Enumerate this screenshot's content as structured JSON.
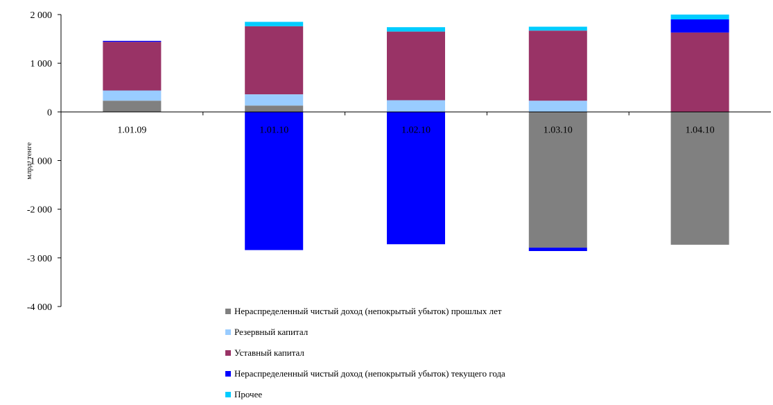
{
  "chart_data": {
    "type": "bar",
    "stacked": true,
    "ylabel": "млрд. тенге",
    "ylim": [
      -4000,
      2000
    ],
    "yticks": [
      2000,
      1000,
      0,
      -1000,
      -2000,
      -3000,
      -4000
    ],
    "ytick_labels": [
      "2 000",
      "1 000",
      "0",
      "-1 000",
      "-2 000",
      "-3 000",
      "-4 000"
    ],
    "categories": [
      "1.01.09",
      "1.01.10",
      "1.02.10",
      "1.03.10",
      "1.04.10"
    ],
    "series": [
      {
        "name": "Нераспределенный чистый доход (непокрытый убыток) прошлых лет",
        "color": "#808080",
        "values": [
          230,
          130,
          0,
          -2790,
          -2730
        ]
      },
      {
        "name": "Резервный капитал",
        "color": "#99ccff",
        "values": [
          210,
          230,
          240,
          230,
          0
        ]
      },
      {
        "name": "Уставный капитал",
        "color": "#993366",
        "values": [
          1000,
          1400,
          1410,
          1440,
          1630
        ]
      },
      {
        "name": "Нераспределенный чистый доход (непокрытый убыток) текущего года",
        "color": "#0000ff",
        "values": [
          20,
          -2840,
          -2720,
          -70,
          270
        ]
      },
      {
        "name": "Прочее",
        "color": "#00ccff",
        "values": [
          0,
          90,
          90,
          80,
          100
        ]
      }
    ],
    "legend_position": "bottom",
    "grid": false
  }
}
